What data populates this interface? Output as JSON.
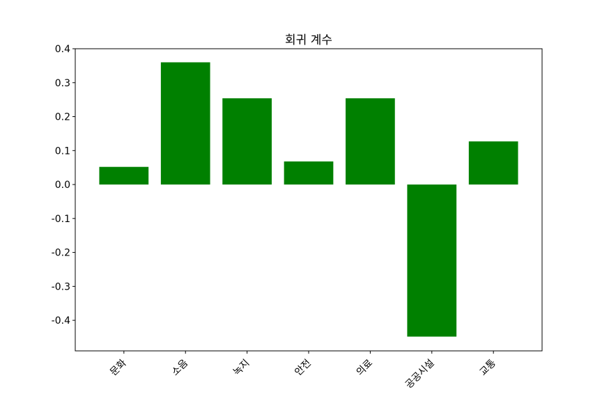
{
  "chart_data": {
    "type": "bar",
    "title": "회귀 계수",
    "xlabel": "",
    "ylabel": "",
    "categories": [
      "문화",
      "소음",
      "녹지",
      "안전",
      "의료",
      "공공시설",
      "교통"
    ],
    "values": [
      0.052,
      0.36,
      0.254,
      0.068,
      0.254,
      -0.448,
      0.127
    ],
    "ylim": [
      -0.49,
      0.4
    ],
    "yticks": [
      0.4,
      0.3,
      0.2,
      0.1,
      0.0,
      -0.1,
      -0.2,
      -0.3,
      -0.4
    ],
    "ytick_labels": [
      "0.4",
      "0.3",
      "0.2",
      "0.1",
      "0.0",
      "-0.1",
      "-0.2",
      "-0.3",
      "-0.4"
    ],
    "bar_color": "#008000",
    "grid": false,
    "xtick_rotation_deg": 45
  }
}
